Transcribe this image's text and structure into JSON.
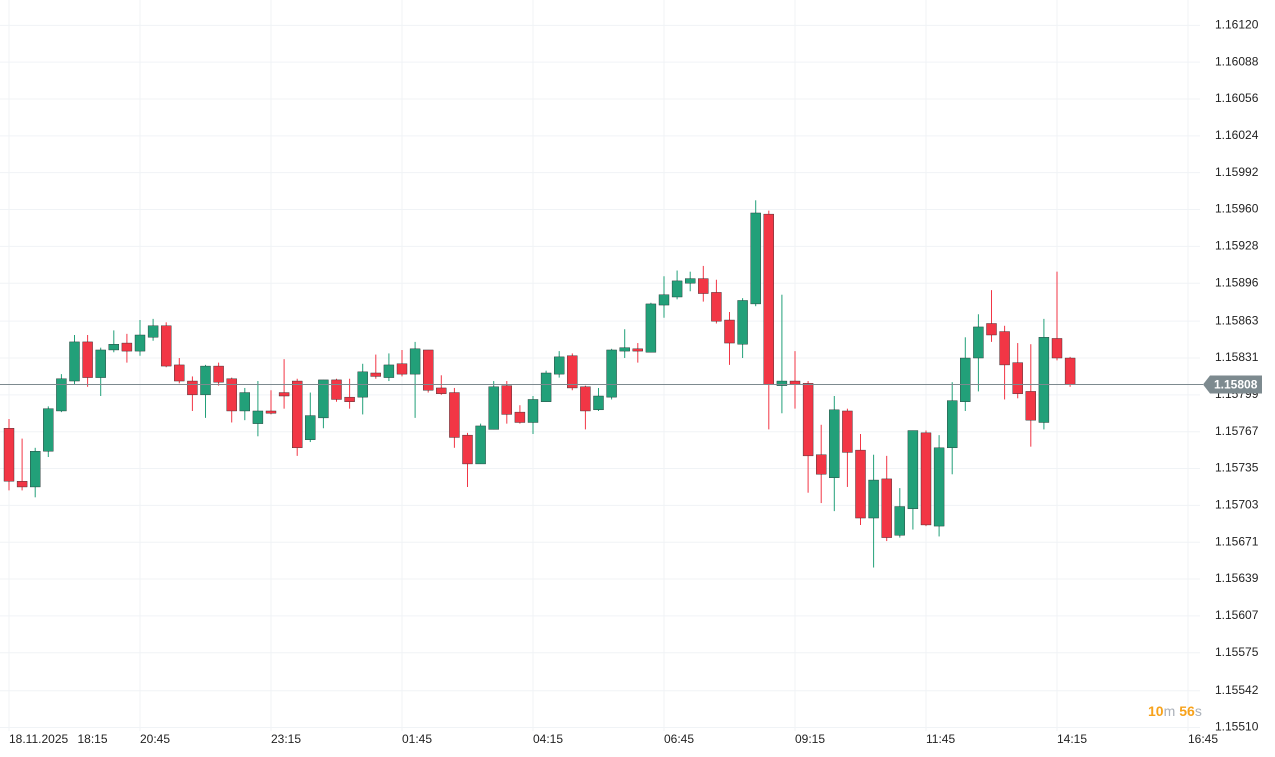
{
  "chart_data": {
    "type": "candlestick",
    "categories": [
      "18.11.2025 18:15",
      null,
      null,
      null,
      null,
      null,
      null,
      null,
      null,
      null,
      "20:45",
      null,
      null,
      null,
      null,
      null,
      null,
      null,
      null,
      null,
      "23:15",
      null,
      null,
      null,
      null,
      null,
      null,
      null,
      null,
      null,
      "01:45",
      null,
      null,
      null,
      null,
      null,
      null,
      null,
      null,
      null,
      "04:15",
      null,
      null,
      null,
      null,
      null,
      null,
      null,
      null,
      null,
      "06:45",
      null,
      null,
      null,
      null,
      null,
      null,
      null,
      null,
      null,
      "09:15",
      null,
      null,
      null,
      null,
      null,
      null,
      null,
      null,
      null,
      "11:45",
      null,
      null,
      null,
      null,
      null,
      null,
      null,
      null,
      null,
      "14:15",
      null,
      null,
      null,
      null,
      null,
      null,
      null,
      null,
      null,
      "16:45"
    ],
    "open": [
      1.1577,
      1.15724,
      1.15719,
      1.1575,
      1.15785,
      1.15811,
      1.15845,
      1.15814,
      1.15838,
      1.15844,
      1.15837,
      1.15849,
      1.15859,
      1.15825,
      1.15811,
      1.15799,
      1.15824,
      1.15813,
      1.15785,
      1.15774,
      1.15785,
      1.15801,
      1.15811,
      1.1576,
      1.15779,
      1.15812,
      1.15797,
      1.15797,
      1.15818,
      1.15814,
      1.15826,
      1.15817,
      1.15838,
      1.15805,
      1.15801,
      1.15764,
      1.15739,
      1.15769,
      1.15807,
      1.15784,
      1.15775,
      1.15793,
      1.15817,
      1.15833,
      1.15806,
      1.15786,
      1.15797,
      1.15837,
      1.15839,
      1.15836,
      1.15877,
      1.15884,
      1.15896,
      1.159,
      1.15888,
      1.15864,
      1.15843,
      1.15878,
      1.15956,
      1.15807,
      1.15811,
      1.15809,
      1.15747,
      1.15727,
      1.15785,
      1.15751,
      1.15692,
      1.15726,
      1.15677,
      1.157,
      1.15766,
      1.15685,
      1.15753,
      1.15793,
      1.15831,
      1.15861,
      1.15854,
      1.15827,
      1.15802,
      1.15775,
      1.15848,
      1.15831,
      null,
      null,
      null,
      null,
      null,
      null,
      null,
      null,
      null
    ],
    "high": [
      1.15778,
      1.15761,
      1.15753,
      1.15789,
      1.15817,
      1.15851,
      1.15851,
      1.1584,
      1.15855,
      1.15852,
      1.15864,
      1.15865,
      1.15862,
      1.15831,
      1.15815,
      1.15825,
      1.15827,
      1.15814,
      1.15805,
      1.15811,
      1.15803,
      1.1583,
      1.15813,
      1.15801,
      1.15812,
      1.15813,
      1.15813,
      1.15826,
      1.15834,
      1.15835,
      1.15838,
      1.15845,
      1.15838,
      1.15816,
      1.15805,
      1.15766,
      1.15774,
      1.15811,
      1.15811,
      1.1579,
      1.15798,
      1.1582,
      1.15837,
      1.15835,
      1.15807,
      1.15805,
      1.15839,
      1.15856,
      1.15844,
      1.15879,
      1.15902,
      1.15907,
      1.15906,
      1.15911,
      1.15899,
      1.15871,
      1.15883,
      1.15968,
      1.15959,
      1.15886,
      1.15837,
      1.15811,
      1.15773,
      1.15798,
      1.15787,
      1.15765,
      1.15747,
      1.15746,
      1.15718,
      1.15768,
      1.15768,
      1.15764,
      1.1581,
      1.15849,
      1.15869,
      1.1589,
      1.15859,
      1.15844,
      1.15843,
      1.15865,
      1.15906,
      1.15832,
      null,
      null,
      null,
      null,
      null,
      null,
      null,
      null,
      null
    ],
    "low": [
      1.15716,
      1.15716,
      1.1571,
      1.15745,
      1.15784,
      1.15808,
      1.15806,
      1.15798,
      1.15836,
      1.15827,
      1.15833,
      1.15846,
      1.15823,
      1.15809,
      1.15785,
      1.15779,
      1.15807,
      1.15775,
      1.15777,
      1.15763,
      1.15782,
      1.15787,
      1.15746,
      1.15758,
      1.1577,
      1.15793,
      1.15787,
      1.15782,
      1.15813,
      1.15811,
      1.15815,
      1.15779,
      1.15801,
      1.15799,
      1.15753,
      1.15719,
      1.15739,
      1.15769,
      1.15774,
      1.15774,
      1.15765,
      1.15793,
      1.15814,
      1.15803,
      1.15769,
      1.15785,
      1.15795,
      1.15831,
      1.15827,
      1.15836,
      1.15866,
      1.15882,
      1.15889,
      1.1588,
      1.15861,
      1.15825,
      1.15831,
      1.15876,
      1.15769,
      1.15783,
      1.15787,
      1.15714,
      1.15705,
      1.15698,
      1.15719,
      1.15686,
      1.15649,
      1.15672,
      1.15675,
      1.15682,
      1.15685,
      1.15676,
      1.1573,
      1.15785,
      1.15802,
      1.15845,
      1.15795,
      1.15796,
      1.15754,
      1.15769,
      1.15829,
      1.15806,
      null,
      null,
      null,
      null,
      null,
      null,
      null,
      null,
      null
    ],
    "close": [
      1.15724,
      1.15719,
      1.1575,
      1.15787,
      1.15813,
      1.15845,
      1.15814,
      1.15838,
      1.15843,
      1.15837,
      1.15851,
      1.15859,
      1.15824,
      1.15811,
      1.15799,
      1.15824,
      1.1581,
      1.15785,
      1.15801,
      1.15785,
      1.15783,
      1.15798,
      1.15753,
      1.15781,
      1.15812,
      1.15795,
      1.15793,
      1.15819,
      1.15815,
      1.15825,
      1.15817,
      1.15839,
      1.15803,
      1.158,
      1.15762,
      1.15739,
      1.15772,
      1.15806,
      1.15782,
      1.15775,
      1.15795,
      1.15818,
      1.15832,
      1.15805,
      1.15785,
      1.15798,
      1.15838,
      1.1584,
      1.15837,
      1.15878,
      1.15886,
      1.15898,
      1.159,
      1.15887,
      1.15863,
      1.15844,
      1.15881,
      1.15957,
      1.15808,
      1.15811,
      1.15808,
      1.15746,
      1.1573,
      1.15786,
      1.15749,
      1.15692,
      1.15725,
      1.15675,
      1.15702,
      1.15768,
      1.15686,
      1.15753,
      1.15794,
      1.15831,
      1.15858,
      1.15851,
      1.15825,
      1.158,
      1.15777,
      1.15849,
      1.15831,
      1.15808,
      null,
      null,
      null,
      null,
      null,
      null,
      null,
      null,
      null
    ],
    "up_color": "#22a079",
    "down_color": "#f23645",
    "ylim": [
      1.15507,
      1.16142
    ],
    "yticks": [
      {
        "value": 1.1612,
        "label": "1.16120"
      },
      1.16088,
      1.16056,
      1.16024,
      1.15992,
      {
        "value": 1.1596,
        "label": "1.15960"
      },
      1.15928,
      1.15896,
      1.15863,
      1.15831,
      1.15799,
      1.15767,
      1.15735,
      1.15703,
      1.15671,
      1.15639,
      1.15607,
      1.15575,
      1.15542,
      {
        "value": 1.1551,
        "label": "1.15510"
      }
    ],
    "grid": true,
    "last_price": 1.15808,
    "countdown": [
      "10",
      "m",
      "56",
      "s"
    ]
  }
}
